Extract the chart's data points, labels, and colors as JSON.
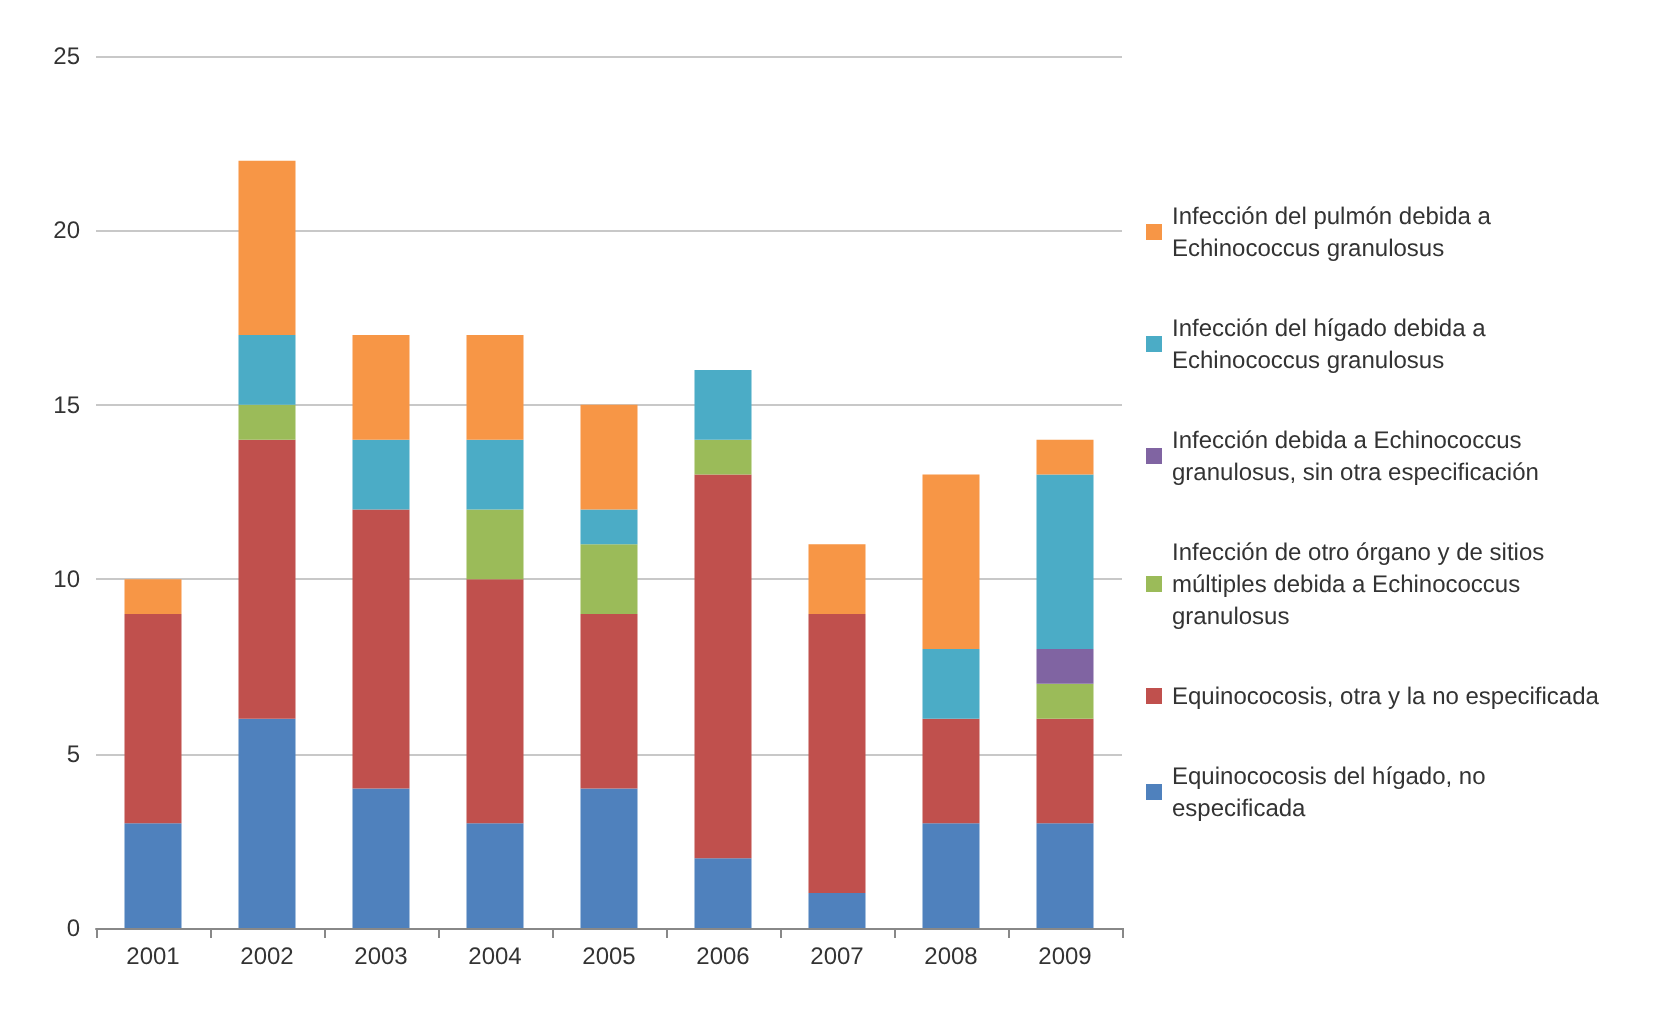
{
  "chart_data": {
    "type": "bar",
    "stacked": true,
    "categories": [
      "2001",
      "2002",
      "2003",
      "2004",
      "2005",
      "2006",
      "2007",
      "2008",
      "2009"
    ],
    "series": [
      {
        "name": "Equinococosis del hígado, no especificada",
        "color": "#4f81bd",
        "values": [
          3,
          6,
          4,
          3,
          4,
          2,
          1,
          3,
          3
        ]
      },
      {
        "name": "Equinococosis, otra y la no especificada",
        "color": "#c0504d",
        "values": [
          6,
          8,
          8,
          7,
          5,
          11,
          8,
          3,
          3
        ]
      },
      {
        "name": "Infección de otro órgano y de sitios múltiples debida a Echinococcus granulosus",
        "color": "#9bbb59",
        "values": [
          0,
          1,
          0,
          2,
          2,
          1,
          0,
          0,
          1
        ]
      },
      {
        "name": "Infección debida a Echinococcus granulosus, sin otra especificación",
        "color": "#8064a2",
        "values": [
          0,
          0,
          0,
          0,
          0,
          0,
          0,
          0,
          1
        ]
      },
      {
        "name": "Infección del hígado debida a Echinococcus granulosus",
        "color": "#4bacc6",
        "values": [
          0,
          2,
          2,
          2,
          1,
          2,
          0,
          2,
          5
        ]
      },
      {
        "name": "Infección del pulmón debida a Echinococcus granulosus",
        "color": "#f79646",
        "values": [
          1,
          5,
          3,
          3,
          3,
          0,
          2,
          5,
          1
        ]
      }
    ],
    "ylim": [
      0,
      25
    ],
    "yticks": [
      0,
      5,
      10,
      15,
      20,
      25
    ],
    "grid": "y",
    "legend": "right"
  }
}
